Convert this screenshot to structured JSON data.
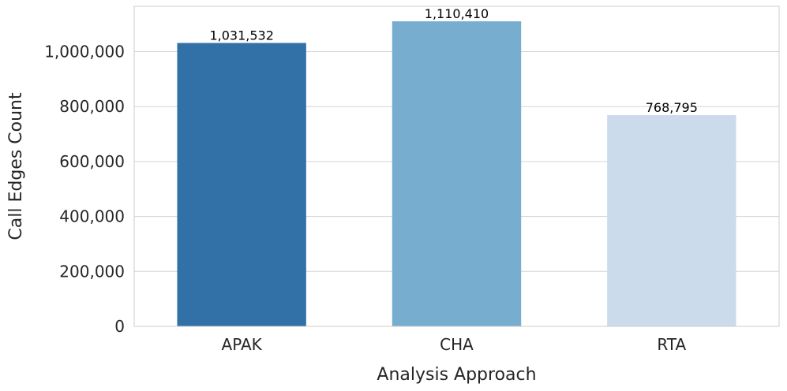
{
  "chart_data": {
    "type": "bar",
    "categories": [
      "APAK",
      "CHA",
      "RTA"
    ],
    "values": [
      1031532,
      1110410,
      768795
    ],
    "value_labels": [
      "1,031,532",
      "1,110,410",
      "768,795"
    ],
    "colors": [
      "#3171a7",
      "#77aecf",
      "#ccdbeb"
    ],
    "xlabel": "Analysis Approach",
    "ylabel": "Call Edges Count",
    "ylim": [
      0,
      1165000
    ],
    "yticks": [
      0,
      200000,
      400000,
      600000,
      800000,
      1000000
    ],
    "ytick_labels": [
      "0",
      "200,000",
      "400,000",
      "600,000",
      "800,000",
      "1,000,000"
    ],
    "grid": true,
    "grid_color": "#d3d3d3"
  }
}
